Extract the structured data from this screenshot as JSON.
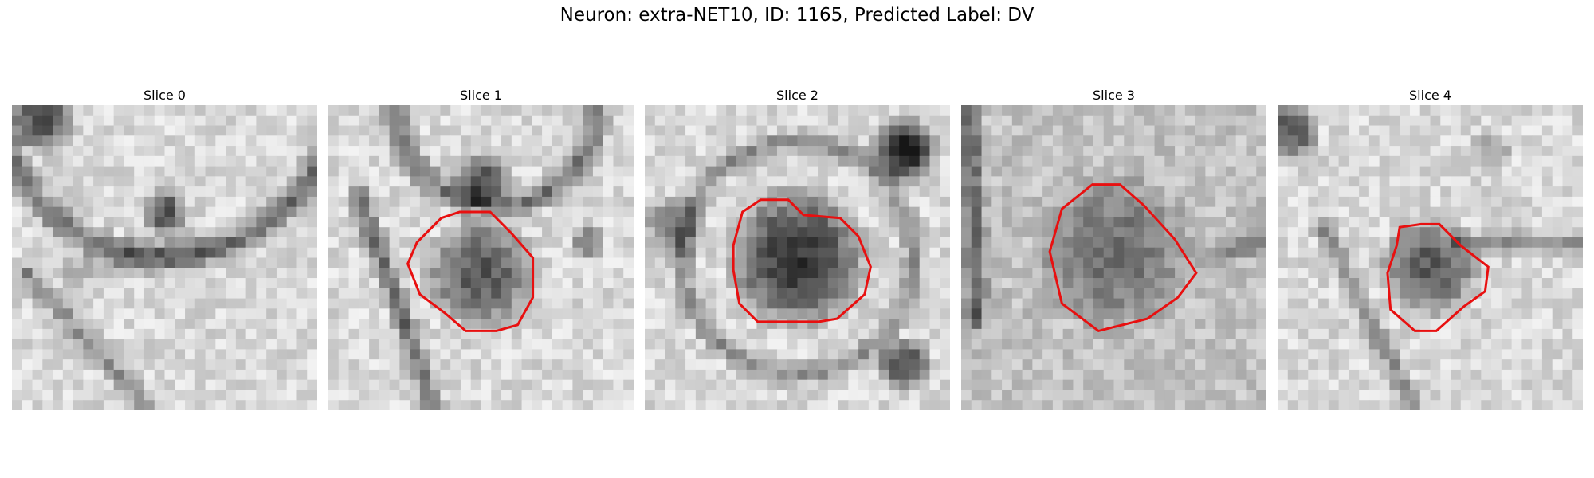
{
  "figure": {
    "title": "Neuron: extra-NET10, ID: 1165, Predicted Label: DV",
    "contour_color": "#e81010",
    "image_colormap": "grayscale"
  },
  "slices": [
    {
      "label": "Slice 0",
      "has_contour": false
    },
    {
      "label": "Slice 1",
      "has_contour": true
    },
    {
      "label": "Slice 2",
      "has_contour": true
    },
    {
      "label": "Slice 3",
      "has_contour": true
    },
    {
      "label": "Slice 4",
      "has_contour": true
    }
  ]
}
